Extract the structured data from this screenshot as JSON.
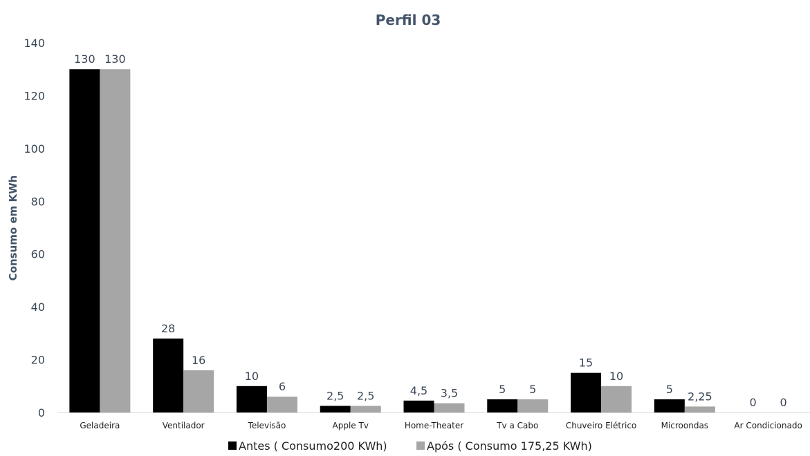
{
  "chart_data": {
    "type": "bar",
    "title": "Perfil 03",
    "xlabel": "",
    "ylabel": "Consumo em KWh",
    "ylim": [
      0,
      140
    ],
    "yticks": [
      0,
      20,
      40,
      60,
      80,
      100,
      120,
      140
    ],
    "grid": false,
    "legend_position": "bottom",
    "categories": [
      "Geladeira",
      "Ventilador",
      "Televisão",
      "Apple Tv",
      "Home-Theater",
      "Tv a Cabo",
      "Chuveiro Elétrico",
      "Microondas",
      "Ar Condicionado"
    ],
    "series": [
      {
        "name": "Antes ( Consumo200 KWh)",
        "color": "#000000",
        "values": [
          130,
          28,
          10,
          2.5,
          4.5,
          5,
          15,
          5,
          0
        ],
        "labels": [
          "130",
          "28",
          "10",
          "2,5",
          "4,5",
          "5",
          "15",
          "5",
          "0"
        ]
      },
      {
        "name": "Após ( Consumo 175,25 KWh)",
        "color": "#A6A6A6",
        "values": [
          130,
          16,
          6,
          2.5,
          3.5,
          5,
          10,
          2.25,
          0
        ],
        "labels": [
          "130",
          "16",
          "6",
          "2,5",
          "3,5",
          "5",
          "10",
          "2,25",
          "0"
        ]
      }
    ]
  }
}
